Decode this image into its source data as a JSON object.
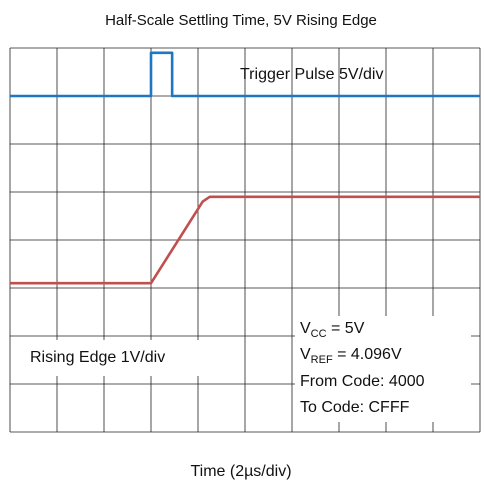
{
  "chart_data": {
    "type": "line",
    "title": "Half-Scale Settling Time, 5V Rising Edge",
    "xlabel": "Time (2µs/div)",
    "xlim": [
      0,
      20
    ],
    "ylim": [
      0,
      8
    ],
    "xticks": [
      0,
      2,
      4,
      6,
      8,
      10,
      12,
      14,
      16,
      18,
      20
    ],
    "yticks": [
      0,
      1,
      2,
      3,
      4,
      5,
      6,
      7,
      8
    ],
    "grid": true,
    "series": [
      {
        "name": "Trigger Pulse 5V/div",
        "color": "#1f77c4",
        "x": [
          0,
          6.0,
          6.0,
          6.9,
          6.9,
          20
        ],
        "values": [
          7.0,
          7.0,
          7.9,
          7.9,
          7.0,
          7.0
        ]
      },
      {
        "name": "Rising Edge 1V/div",
        "color": "#c0504d",
        "x": [
          0,
          6.0,
          8.2,
          8.5,
          20
        ],
        "values": [
          3.1,
          3.1,
          4.8,
          4.9,
          4.9
        ]
      }
    ],
    "annotations": [
      {
        "main": "V",
        "sub": "CC",
        "rest": " = 5V"
      },
      {
        "main": "V",
        "sub": "REF",
        "rest": " = 4.096V"
      },
      {
        "main": "From Code: 4000"
      },
      {
        "main": "To Code: CFFF"
      }
    ]
  }
}
